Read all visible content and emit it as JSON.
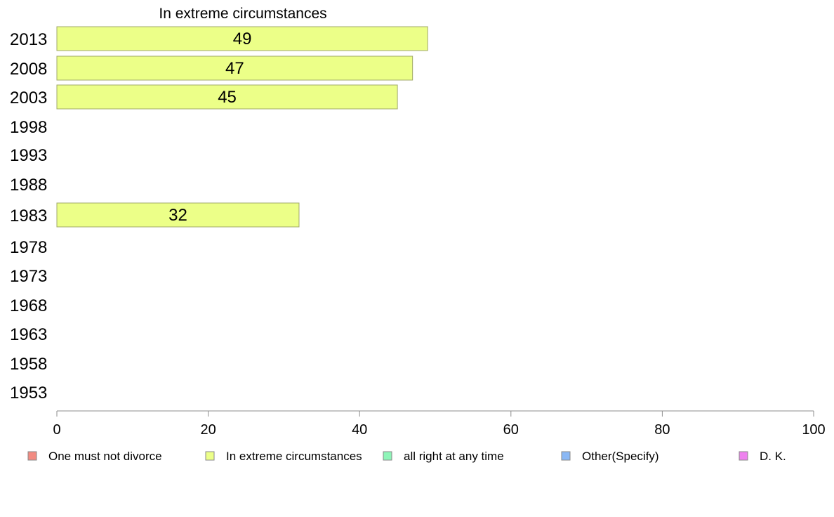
{
  "chart_data": {
    "type": "bar",
    "orientation": "horizontal",
    "title": "In extreme circumstances",
    "categories": [
      "2013",
      "2008",
      "2003",
      "1998",
      "1993",
      "1988",
      "1983",
      "1978",
      "1973",
      "1968",
      "1963",
      "1958",
      "1953"
    ],
    "series": [
      {
        "name": "In extreme circumstances",
        "values": [
          49,
          47,
          45,
          null,
          null,
          null,
          32,
          null,
          null,
          null,
          null,
          null,
          null
        ],
        "color": "#ecff88"
      }
    ],
    "xlim": [
      0,
      100
    ],
    "xticks": [
      0,
      20,
      40,
      60,
      80,
      100
    ],
    "grid": false,
    "legend": {
      "placement": "bottom",
      "entries": [
        {
          "label": "One must not divorce",
          "color": "#f28b82"
        },
        {
          "label": "In extreme circumstances",
          "color": "#ecff88"
        },
        {
          "label": "all right at any time",
          "color": "#8ef5b8"
        },
        {
          "label": "Other(Specify)",
          "color": "#8ab8f5"
        },
        {
          "label": "D. K.",
          "color": "#ee82ee"
        }
      ]
    }
  }
}
